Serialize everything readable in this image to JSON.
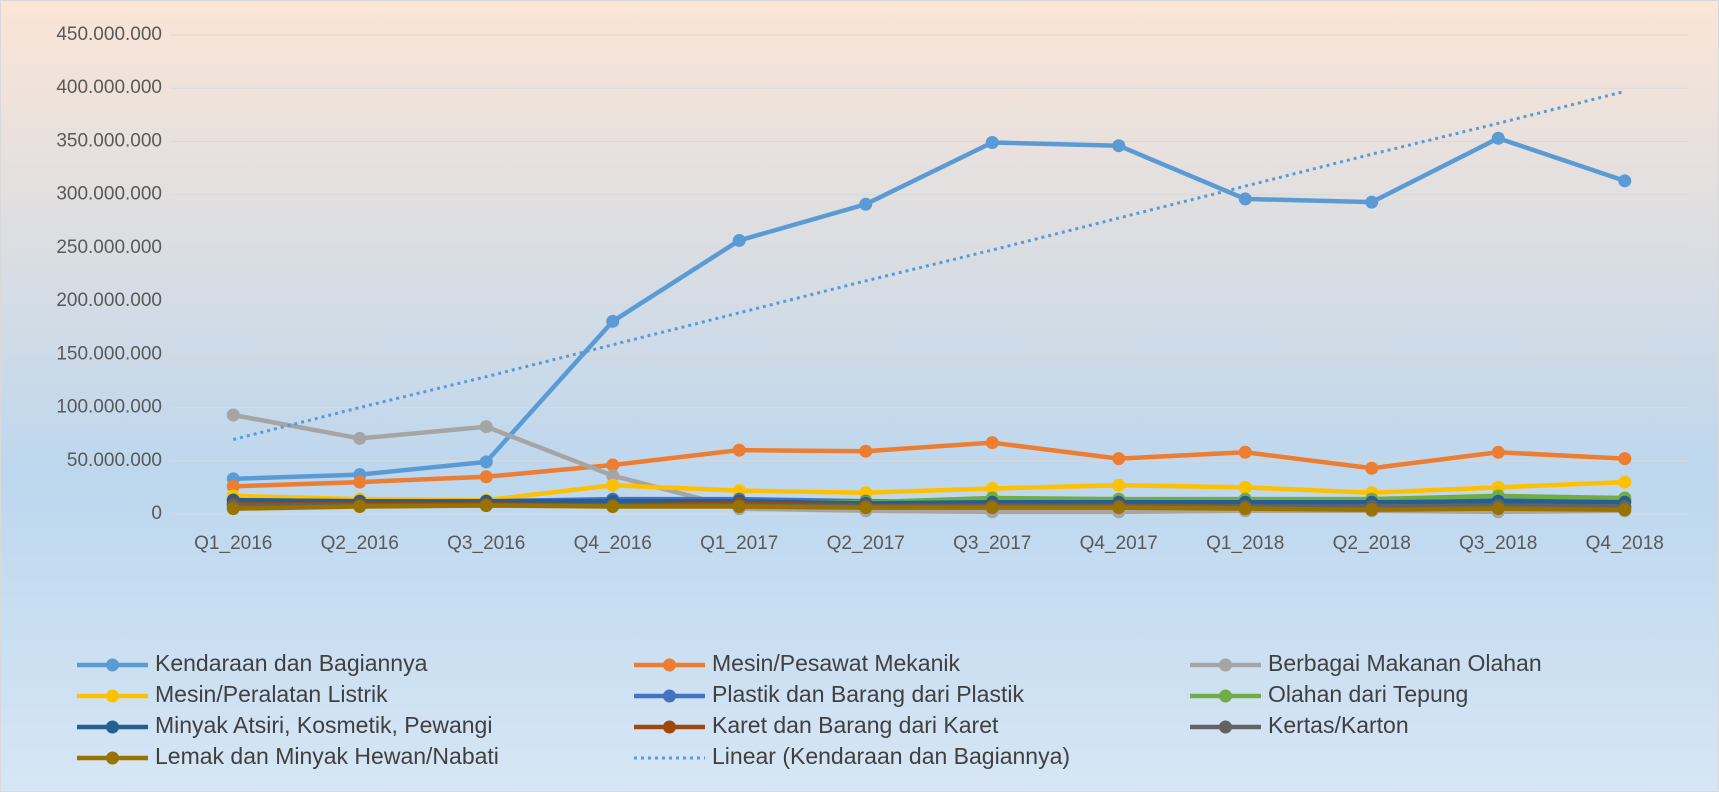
{
  "chart_data": {
    "type": "line",
    "categories": [
      "Q1_2016",
      "Q2_2016",
      "Q3_2016",
      "Q4_2016",
      "Q1_2017",
      "Q2_2017",
      "Q3_2017",
      "Q4_2017",
      "Q1_2018",
      "Q2_2018",
      "Q3_2018",
      "Q4_2018"
    ],
    "ylim": [
      0,
      450000000
    ],
    "yticks": [
      0,
      {
        "value": 50000000,
        "label": "50.000.000"
      },
      {
        "value": 100000000,
        "label": "100.000.000"
      },
      {
        "value": 150000000,
        "label": "150.000.000"
      },
      {
        "value": 200000000,
        "label": "200.000.000"
      },
      {
        "value": 250000000,
        "label": "250.000.000"
      },
      {
        "value": 300000000,
        "label": "300.000.000"
      },
      {
        "value": 350000000,
        "label": "350.000.000"
      },
      {
        "value": 400000000,
        "label": "400.000.000"
      },
      {
        "value": 450000000,
        "label": "450.000.000"
      }
    ],
    "grid": true,
    "legend": "bottom",
    "series": [
      {
        "name": "Kendaraan dan Bagiannya",
        "color": "#5b9bd5",
        "values": [
          33000000,
          37000000,
          49000000,
          181000000,
          257000000,
          291000000,
          349000000,
          346000000,
          296000000,
          293000000,
          353000000,
          313000000
        ]
      },
      {
        "name": "Mesin/Pesawat Mekanik",
        "color": "#ed7d31",
        "values": [
          26000000,
          30000000,
          35000000,
          46000000,
          60000000,
          59000000,
          67000000,
          52000000,
          58000000,
          43000000,
          58000000,
          52000000
        ]
      },
      {
        "name": "Berbagai Makanan Olahan",
        "color": "#a5a5a5",
        "values": [
          93000000,
          71000000,
          82000000,
          36000000,
          5000000,
          3000000,
          2000000,
          2000000,
          3000000,
          3000000,
          2000000,
          3000000
        ]
      },
      {
        "name": "Mesin/Peralatan Listrik",
        "color": "#ffc000",
        "values": [
          17000000,
          14000000,
          13000000,
          27000000,
          22000000,
          20000000,
          24000000,
          27000000,
          25000000,
          20000000,
          25000000,
          30000000
        ]
      },
      {
        "name": "Plastik dan Barang dari Plastik",
        "color": "#4472c4",
        "values": [
          13000000,
          12000000,
          12000000,
          14000000,
          14000000,
          12000000,
          12000000,
          12000000,
          13000000,
          12000000,
          13000000,
          13000000
        ]
      },
      {
        "name": "Olahan dari Tepung",
        "color": "#70ad47",
        "values": [
          10000000,
          10000000,
          11000000,
          10000000,
          11000000,
          11000000,
          15000000,
          14000000,
          14000000,
          14000000,
          17000000,
          15000000
        ]
      },
      {
        "name": "Minyak Atsiri, Kosmetik, Pewangi",
        "color": "#255e91",
        "values": [
          13000000,
          12000000,
          12000000,
          12000000,
          12000000,
          10000000,
          11000000,
          11000000,
          11000000,
          11000000,
          12000000,
          11000000
        ]
      },
      {
        "name": "Karet dan Barang dari Karet",
        "color": "#9e480e",
        "values": [
          9000000,
          9000000,
          9000000,
          8000000,
          10000000,
          8000000,
          8000000,
          8000000,
          7000000,
          6000000,
          7000000,
          6000000
        ]
      },
      {
        "name": "Kertas/Karton",
        "color": "#636363",
        "values": [
          8000000,
          8000000,
          8000000,
          8000000,
          8000000,
          7000000,
          7000000,
          7000000,
          7000000,
          7000000,
          8000000,
          7000000
        ]
      },
      {
        "name": "Lemak dan Minyak Hewan/Nabati",
        "color": "#997300",
        "values": [
          5000000,
          7000000,
          8000000,
          7000000,
          7000000,
          6000000,
          6000000,
          6000000,
          5000000,
          4000000,
          5000000,
          4000000
        ]
      },
      {
        "name": "Linear (Kendaraan dan Bagiannya)",
        "color": "#5b9bd5",
        "dashed": true,
        "values": [
          70000000,
          100000000,
          129000000,
          159000000,
          189000000,
          219000000,
          248000000,
          278000000,
          308000000,
          338000000,
          367000000,
          397000000
        ]
      }
    ]
  }
}
